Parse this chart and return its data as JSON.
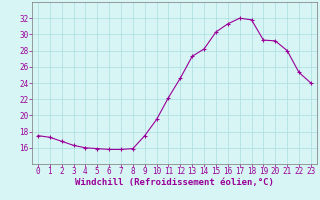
{
  "hours": [
    0,
    1,
    2,
    3,
    4,
    5,
    6,
    7,
    8,
    9,
    10,
    11,
    12,
    13,
    14,
    15,
    16,
    17,
    18,
    19,
    20,
    21,
    22,
    23
  ],
  "values": [
    17.5,
    17.3,
    16.8,
    16.3,
    16.0,
    15.9,
    15.8,
    15.8,
    15.9,
    17.5,
    19.5,
    22.2,
    24.6,
    27.3,
    28.2,
    30.3,
    31.3,
    32.0,
    31.8,
    29.3,
    29.2,
    28.0,
    25.3,
    24.0
  ],
  "line_color": "#990099",
  "marker": "+",
  "bg_color": "#d8f5f5",
  "grid_color": "#aadddd",
  "xlabel": "Windchill (Refroidissement éolien,°C)",
  "xlabel_color": "#990099",
  "xlim": [
    -0.5,
    23.5
  ],
  "ylim": [
    14,
    34
  ],
  "yticks": [
    16,
    18,
    20,
    22,
    24,
    26,
    28,
    30,
    32
  ],
  "xticks": [
    0,
    1,
    2,
    3,
    4,
    5,
    6,
    7,
    8,
    9,
    10,
    11,
    12,
    13,
    14,
    15,
    16,
    17,
    18,
    19,
    20,
    21,
    22,
    23
  ],
  "axis_color": "#777777",
  "tick_color": "#990099",
  "font_size_xlabel": 6.5,
  "font_size_ticks": 5.5,
  "line_width": 0.8,
  "marker_size": 3.5
}
